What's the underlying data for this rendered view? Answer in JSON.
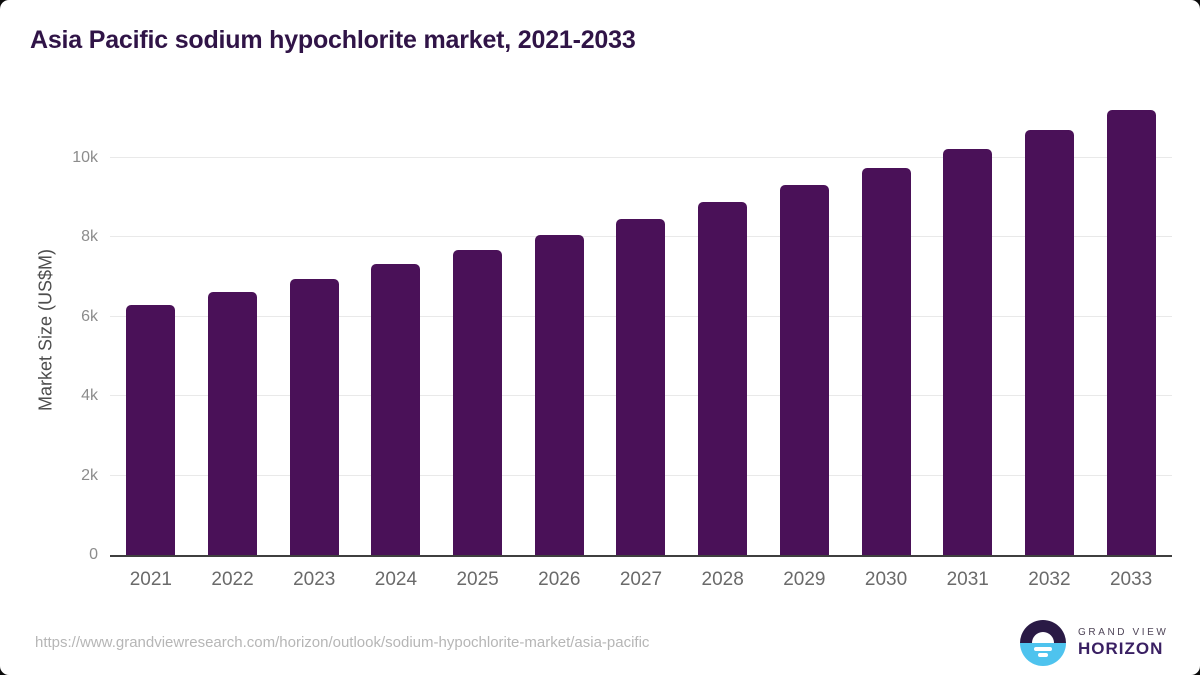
{
  "title": "Asia Pacific sodium hypochlorite market, 2021-2033",
  "chart_data": {
    "type": "bar",
    "categories": [
      "2021",
      "2022",
      "2023",
      "2024",
      "2025",
      "2026",
      "2027",
      "2028",
      "2029",
      "2030",
      "2031",
      "2032",
      "2033"
    ],
    "values": [
      6300,
      6630,
      6950,
      7330,
      7680,
      8050,
      8460,
      8880,
      9310,
      9750,
      10230,
      10700,
      11190
    ],
    "title": "Asia Pacific sodium hypochlorite market, 2021-2033",
    "xlabel": "",
    "ylabel": "Market Size (US$M)",
    "ylim": [
      0,
      11478
    ],
    "yticks": [
      0,
      2000,
      4000,
      6000,
      8000,
      10000
    ],
    "ytick_labels": [
      "0",
      "2k",
      "4k",
      "6k",
      "8k",
      "10k"
    ],
    "grid": true,
    "legend": "none",
    "bar_color": "#4a1158"
  },
  "footer": {
    "source_url": "https://www.grandviewresearch.com/horizon/outlook/sodium-hypochlorite-market/asia-pacific",
    "logo": {
      "line1": "GRAND VIEW",
      "line2": "HORIZON"
    }
  },
  "colors": {
    "bar": "#4a1158",
    "title_text": "#301447",
    "axis_line": "#3f3f3f",
    "gridline": "#e9e9e9",
    "y_tick_text": "#8c8c8c",
    "x_tick_text": "#6a6a6a",
    "y_axis_title_text": "#4d4d4d",
    "url_text": "#b6b6b6",
    "logo_navy": "#2a1a45",
    "logo_blue": "#4ec3ee",
    "logo_text_purple": "#3a2063"
  }
}
